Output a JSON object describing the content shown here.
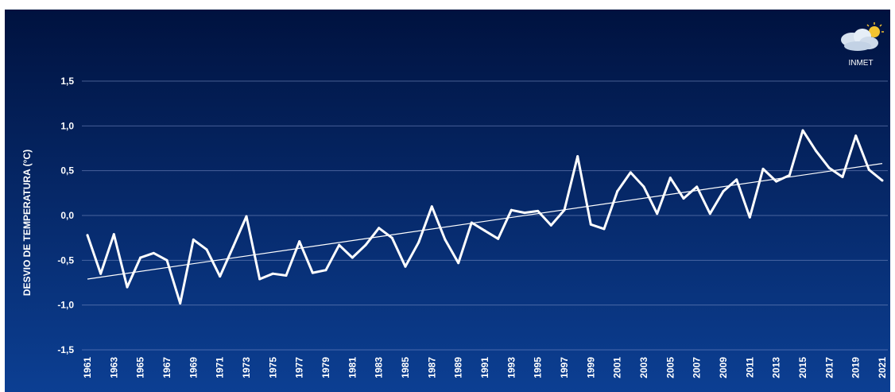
{
  "logo": {
    "text": "INMET",
    "icon": "cloud-sun-icon"
  },
  "colors": {
    "background_top": "#00123f",
    "background_bottom": "#0c3f93",
    "line": "#ffffff",
    "grid": "#7f93c8",
    "trend": "#ffffff"
  },
  "chart_data": {
    "type": "line",
    "title": "",
    "xlabel": "",
    "ylabel": "DESVIO DE TEMPERATURA (°C)",
    "ylim": [
      -1.5,
      1.5
    ],
    "yticks": [
      -1.5,
      -1.0,
      -0.5,
      0.0,
      0.5,
      1.0,
      1.5
    ],
    "ytick_labels": [
      "-1,5",
      "-1,0",
      "-0,5",
      "0,0",
      "0,5",
      "1,0",
      "1,5"
    ],
    "xtick_labels": [
      "1961",
      "1963",
      "1965",
      "1967",
      "1969",
      "1971",
      "1973",
      "1975",
      "1977",
      "1979",
      "1981",
      "1983",
      "1985",
      "1987",
      "1989",
      "1991",
      "1993",
      "1995",
      "1997",
      "1999",
      "2001",
      "2003",
      "2005",
      "2007",
      "2009",
      "2011",
      "2013",
      "2015",
      "2017",
      "2019",
      "2021"
    ],
    "grid": true,
    "legend": "none",
    "x": [
      1961,
      1962,
      1963,
      1964,
      1965,
      1966,
      1967,
      1968,
      1969,
      1970,
      1971,
      1972,
      1973,
      1974,
      1975,
      1976,
      1977,
      1978,
      1979,
      1980,
      1981,
      1982,
      1983,
      1984,
      1985,
      1986,
      1987,
      1988,
      1989,
      1990,
      1991,
      1992,
      1993,
      1994,
      1995,
      1996,
      1997,
      1998,
      1999,
      2000,
      2001,
      2002,
      2003,
      2004,
      2005,
      2006,
      2007,
      2008,
      2009,
      2010,
      2011,
      2012,
      2013,
      2014,
      2015,
      2016,
      2017,
      2018,
      2019,
      2020,
      2021
    ],
    "series": [
      {
        "values": [
          -0.22,
          -0.65,
          -0.21,
          -0.8,
          -0.47,
          -0.42,
          -0.5,
          -0.98,
          -0.27,
          -0.38,
          -0.68,
          -0.35,
          -0.01,
          -0.71,
          -0.65,
          -0.67,
          -0.29,
          -0.64,
          -0.61,
          -0.33,
          -0.47,
          -0.33,
          -0.14,
          -0.25,
          -0.57,
          -0.3,
          0.1,
          -0.27,
          -0.53,
          -0.08,
          -0.17,
          -0.26,
          0.06,
          0.03,
          0.05,
          -0.11,
          0.06,
          0.66,
          -0.1,
          -0.15,
          0.27,
          0.48,
          0.32,
          0.02,
          0.42,
          0.19,
          0.32,
          0.02,
          0.27,
          0.4,
          -0.02,
          0.52,
          0.38,
          0.45,
          0.95,
          0.72,
          0.53,
          0.43,
          0.89,
          0.51,
          0.39
        ]
      },
      {
        "type": "trend",
        "x": [
          1961,
          2021
        ],
        "values": [
          -0.71,
          0.58
        ]
      }
    ]
  }
}
